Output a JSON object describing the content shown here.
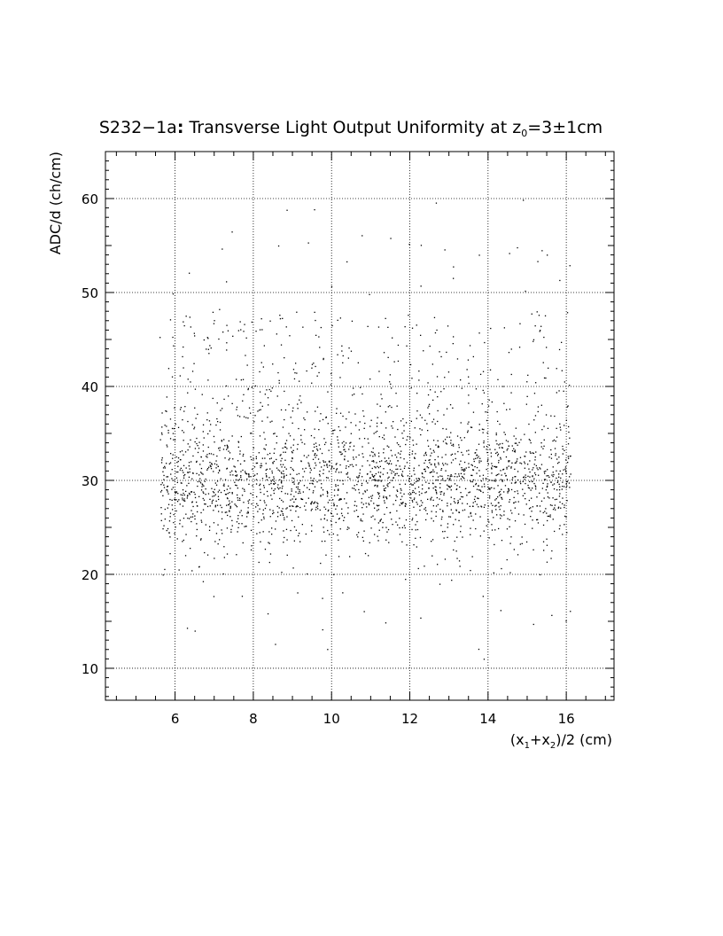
{
  "chart_data": {
    "type": "scatter",
    "title": {
      "prefix": "S232−1a",
      "colon": ":",
      "main": " Transverse Light Output Uniformity at z",
      "sub": "0",
      "suffix": "=3±1cm"
    },
    "xlabel": {
      "p1": "(x",
      "s1": "1",
      "p2": "+x",
      "s2": "2",
      "p3": ")/2 (cm)"
    },
    "ylabel": "ADC/d (ch/cm)",
    "xlim": [
      4.22,
      17.22
    ],
    "ylim": [
      6.6,
      65.0
    ],
    "xticks": [
      6,
      8,
      10,
      12,
      14,
      16
    ],
    "yticks": [
      10,
      20,
      30,
      40,
      50,
      60
    ],
    "xtick_labels": [
      "6",
      "8",
      "10",
      "12",
      "14",
      "16"
    ],
    "ytick_labels": [
      "10",
      "20",
      "30",
      "40",
      "50",
      "60"
    ],
    "grid": true,
    "grid_style": "dotted",
    "marker_color": "#000000",
    "distribution": {
      "x_range": [
        5.6,
        16.1
      ],
      "core_center_y": 30,
      "core_spread_y": 3.5,
      "sparse_y_range": [
        11,
        60
      ],
      "n_points": 2600,
      "seed": 232
    }
  }
}
